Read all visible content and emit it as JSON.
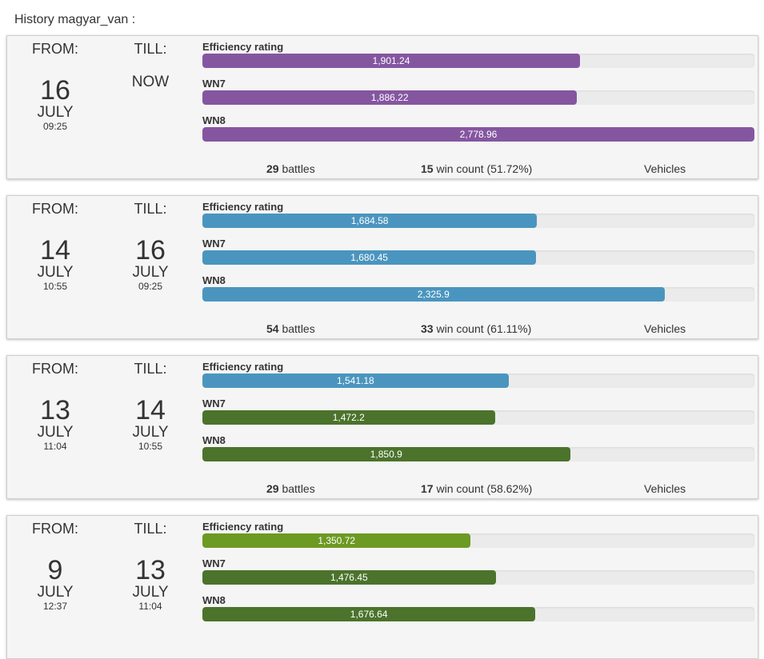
{
  "page": {
    "title": "History magyar_van :"
  },
  "labels": {
    "from": "FROM:",
    "till": "TILL:",
    "battles_suffix": "battles",
    "wins_suffix": "win count",
    "vehicles": "Vehicles"
  },
  "bar_max": 2778.96,
  "colors": {
    "purple": "#8556a0",
    "blue": "#4a95bf",
    "dark_green": "#4b732c",
    "light_green": "#6c9a23"
  },
  "panels": [
    {
      "from": {
        "day": "16",
        "month": "JULY",
        "time": "09:25"
      },
      "till": {
        "now": "NOW"
      },
      "metrics": [
        {
          "label": "Efficiency rating",
          "text": "1,901.24",
          "value": 1901.24,
          "color": "#8556a0"
        },
        {
          "label": "WN7",
          "text": "1,886.22",
          "value": 1886.22,
          "color": "#8556a0"
        },
        {
          "label": "WN8",
          "text": "2,778.96",
          "value": 2778.96,
          "color": "#8556a0"
        }
      ],
      "battles": "29",
      "wins": "15",
      "win_pct": "(51.72%)"
    },
    {
      "from": {
        "day": "14",
        "month": "JULY",
        "time": "10:55"
      },
      "till": {
        "day": "16",
        "month": "JULY",
        "time": "09:25"
      },
      "metrics": [
        {
          "label": "Efficiency rating",
          "text": "1,684.58",
          "value": 1684.58,
          "color": "#4a95bf"
        },
        {
          "label": "WN7",
          "text": "1,680.45",
          "value": 1680.45,
          "color": "#4a95bf"
        },
        {
          "label": "WN8",
          "text": "2,325.9",
          "value": 2325.9,
          "color": "#4a95bf"
        }
      ],
      "battles": "54",
      "wins": "33",
      "win_pct": "(61.11%)"
    },
    {
      "from": {
        "day": "13",
        "month": "JULY",
        "time": "11:04"
      },
      "till": {
        "day": "14",
        "month": "JULY",
        "time": "10:55"
      },
      "metrics": [
        {
          "label": "Efficiency rating",
          "text": "1,541.18",
          "value": 1541.18,
          "color": "#4a95bf"
        },
        {
          "label": "WN7",
          "text": "1,472.2",
          "value": 1472.2,
          "color": "#4b732c"
        },
        {
          "label": "WN8",
          "text": "1,850.9",
          "value": 1850.9,
          "color": "#4b732c"
        }
      ],
      "battles": "29",
      "wins": "17",
      "win_pct": "(58.62%)"
    },
    {
      "from": {
        "day": "9",
        "month": "JULY",
        "time": "12:37"
      },
      "till": {
        "day": "13",
        "month": "JULY",
        "time": "11:04"
      },
      "metrics": [
        {
          "label": "Efficiency rating",
          "text": "1,350.72",
          "value": 1350.72,
          "color": "#6c9a23"
        },
        {
          "label": "WN7",
          "text": "1,476.45",
          "value": 1476.45,
          "color": "#4b732c"
        },
        {
          "label": "WN8",
          "text": "1,676.64",
          "value": 1676.64,
          "color": "#4b732c"
        }
      ]
    }
  ]
}
